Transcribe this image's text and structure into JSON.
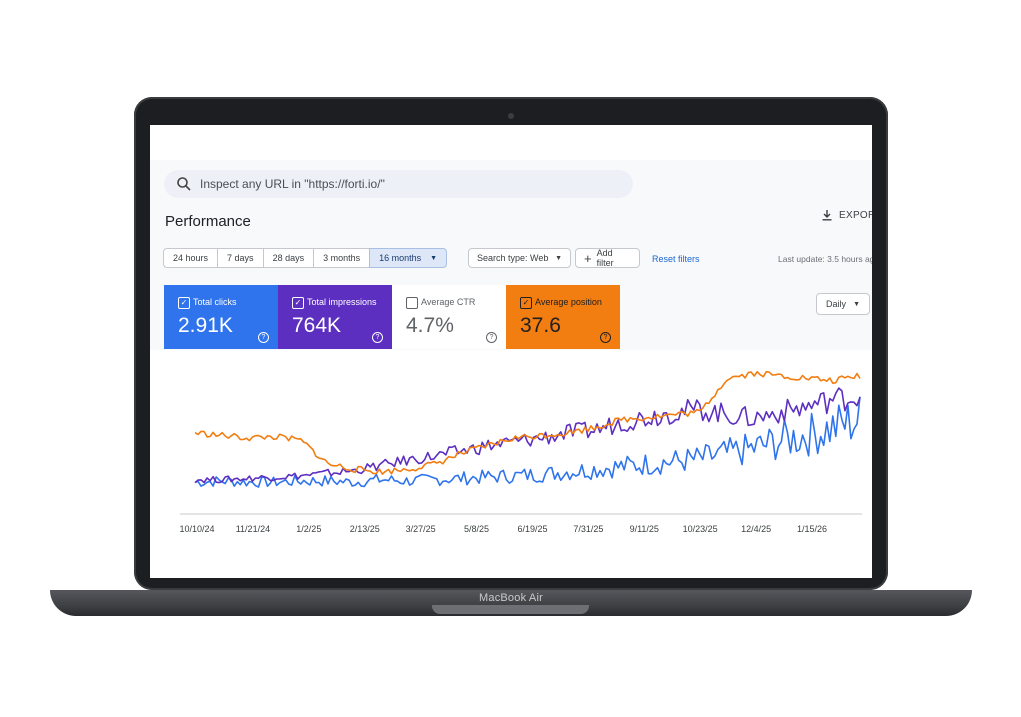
{
  "device": {
    "brand_label": "MacBook Air"
  },
  "search": {
    "placeholder": "Inspect any URL in \"https://forti.io/\"",
    "icon": "search-icon"
  },
  "page": {
    "title": "Performance",
    "export_label": "EXPOR"
  },
  "filters": {
    "date_ranges": [
      {
        "label": "24 hours",
        "selected": false
      },
      {
        "label": "7 days",
        "selected": false
      },
      {
        "label": "28 days",
        "selected": false
      },
      {
        "label": "3 months",
        "selected": false
      },
      {
        "label": "16 months",
        "selected": true
      }
    ],
    "search_type": "Search type: Web",
    "add_filter": "Add filter",
    "reset": "Reset filters",
    "last_update": "Last update: 3.5 hours ag"
  },
  "metrics": [
    {
      "label": "Total clicks",
      "value": "2.91K",
      "checked": true,
      "color": "#2f74ec"
    },
    {
      "label": "Total impressions",
      "value": "764K",
      "checked": true,
      "color": "#5d2fc1"
    },
    {
      "label": "Average CTR",
      "value": "4.7%",
      "checked": false,
      "color": "#ffffff"
    },
    {
      "label": "Average position",
      "value": "37.6",
      "checked": true,
      "color": "#f27d10"
    }
  ],
  "granularity": "Daily",
  "chart_data": {
    "type": "line",
    "x_tick_labels": [
      "10/10/24",
      "11/21/24",
      "1/2/25",
      "2/13/25",
      "3/27/25",
      "5/8/25",
      "6/19/25",
      "7/31/25",
      "9/11/25",
      "10/23/25",
      "12/4/25",
      "1/15/26"
    ],
    "series": [
      {
        "name": "Total clicks",
        "color": "#2f74ec",
        "values": [
          6,
          7,
          6,
          6,
          7,
          7,
          6,
          8,
          7,
          8,
          9,
          10,
          11,
          12,
          14,
          16,
          18,
          20,
          22,
          24,
          28,
          32,
          38,
          42,
          48,
          55
        ]
      },
      {
        "name": "Total impressions",
        "color": "#5d2fc1",
        "values": [
          8,
          8,
          9,
          10,
          11,
          13,
          15,
          19,
          23,
          26,
          30,
          34,
          37,
          40,
          44,
          46,
          52,
          56,
          60,
          62,
          58,
          55,
          60,
          64,
          70,
          72
        ]
      },
      {
        "name": "Average position",
        "color": "#f27d10",
        "values": [
          44,
          42,
          40,
          41,
          38,
          20,
          16,
          14,
          16,
          20,
          28,
          34,
          40,
          42,
          44,
          48,
          54,
          56,
          58,
          60,
          86,
          90,
          88,
          86,
          84,
          88
        ]
      }
    ],
    "grid": false,
    "legend": "metric cards above chart"
  }
}
